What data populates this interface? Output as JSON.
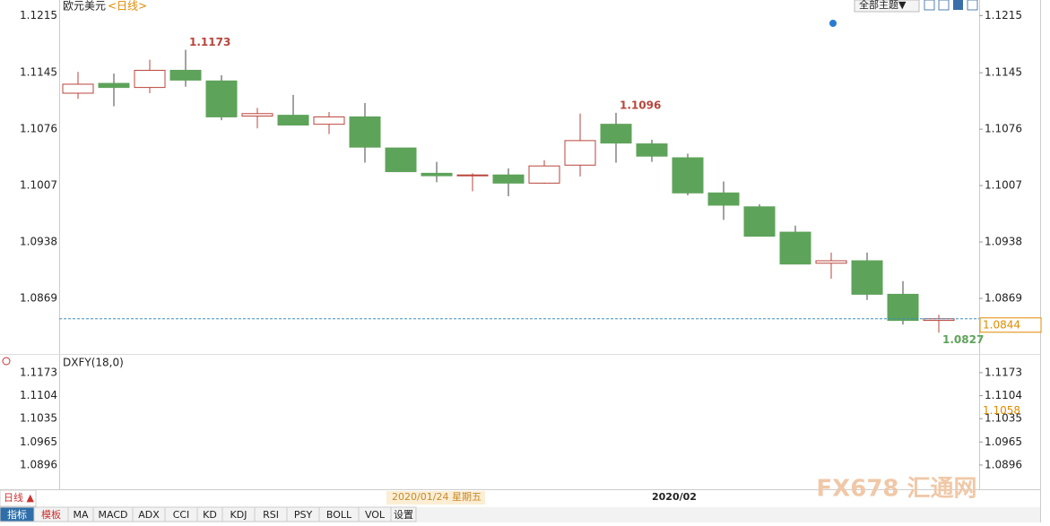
{
  "chart_data": {
    "type": "candlestick",
    "title": "欧元美元",
    "period": "<日线>",
    "theme_button": "全部主题▼",
    "categories": [
      null,
      null,
      null,
      null,
      null,
      null,
      null,
      null,
      null,
      null,
      "2020/01/24 星期五",
      null,
      null,
      null,
      null,
      null,
      "2020/02",
      null,
      null,
      null,
      null,
      null,
      null,
      null,
      null
    ],
    "open": [
      1.112,
      1.1132,
      1.1127,
      1.1148,
      1.1135,
      1.1092,
      1.1093,
      1.1082,
      1.1091,
      1.1053,
      1.1022,
      1.1019,
      1.102,
      1.101,
      1.1032,
      1.1082,
      1.1058,
      1.1041,
      1.0998,
      1.0981,
      1.095,
      1.0912,
      1.0915,
      1.0874,
      1.0842
    ],
    "high": [
      1.1146,
      1.1144,
      1.1161,
      1.1173,
      1.1142,
      1.1102,
      1.1118,
      1.1097,
      1.1108,
      1.1053,
      1.1036,
      1.1022,
      1.1028,
      1.1038,
      1.1095,
      1.1096,
      1.1063,
      1.1046,
      1.1012,
      1.0984,
      1.0958,
      1.0925,
      1.0925,
      1.089,
      1.0849
    ],
    "low": [
      1.1113,
      1.1104,
      1.112,
      1.1128,
      1.1087,
      1.1077,
      1.1081,
      1.107,
      1.1035,
      1.1024,
      1.1011,
      1.1,
      1.0994,
      1.1009,
      1.1018,
      1.1035,
      1.1036,
      1.0995,
      1.0965,
      1.0945,
      1.0911,
      1.0893,
      1.0867,
      1.0837,
      1.0827
    ],
    "close": [
      1.1131,
      1.1127,
      1.1148,
      1.1136,
      1.1091,
      1.1095,
      1.1081,
      1.1091,
      1.1054,
      1.1024,
      1.1019,
      1.102,
      1.101,
      1.1031,
      1.1062,
      1.1059,
      1.1043,
      1.0998,
      1.0983,
      1.0945,
      1.0911,
      1.0915,
      1.0874,
      1.0842,
      1.0844
    ],
    "labeled_highs": [
      3,
      15
    ],
    "labeled_lows": [
      24
    ],
    "last_price": 1.0844,
    "up_color": "#b8453c",
    "down_color": "#5ea35a",
    "ylim": [
      1.0801,
      1.1234
    ],
    "yticks": [
      1.1215,
      1.1145,
      1.1076,
      1.1007,
      1.0938,
      1.0869
    ],
    "indicator": {
      "name": "DXFY(18,0)",
      "ylim": [
        1.0826,
        1.1221
      ],
      "yticks": [
        1.1173,
        1.1104,
        1.1035,
        1.0965,
        1.0896
      ],
      "value": 1.1058
    },
    "tabs": [
      "日线 ▲",
      "指标",
      "模板",
      "MA",
      "MACD",
      "ADX",
      "CCI",
      "KD",
      "KDJ",
      "RSI",
      "PSY",
      "BOLL",
      "VOL",
      "设置"
    ],
    "watermark": "FX678 汇通网"
  }
}
